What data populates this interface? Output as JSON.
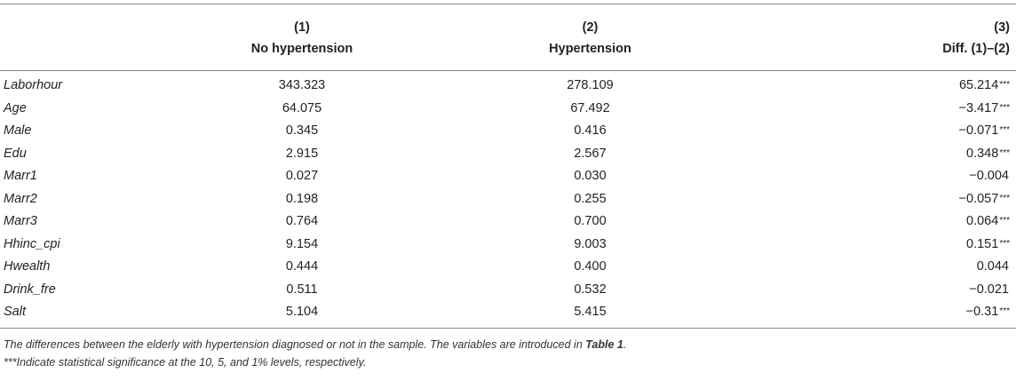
{
  "table": {
    "headers": {
      "col1_num": "(1)",
      "col1_name": "No hypertension",
      "col2_num": "(2)",
      "col2_name": "Hypertension",
      "col3_num": "(3)",
      "col3_name": "Diff. (1)–(2)"
    },
    "rows": [
      {
        "var": "Laborhour",
        "v1": "343.323",
        "v2": "278.109",
        "diff": "65.214",
        "stars": "***"
      },
      {
        "var": "Age",
        "v1": "64.075",
        "v2": "67.492",
        "diff": "−3.417",
        "stars": "***"
      },
      {
        "var": "Male",
        "v1": "0.345",
        "v2": "0.416",
        "diff": "−0.071",
        "stars": "***"
      },
      {
        "var": "Edu",
        "v1": "2.915",
        "v2": "2.567",
        "diff": "0.348",
        "stars": "***"
      },
      {
        "var": "Marr1",
        "v1": "0.027",
        "v2": "0.030",
        "diff": "−0.004",
        "stars": ""
      },
      {
        "var": "Marr2",
        "v1": "0.198",
        "v2": "0.255",
        "diff": "−0.057",
        "stars": "***"
      },
      {
        "var": "Marr3",
        "v1": "0.764",
        "v2": "0.700",
        "diff": "0.064",
        "stars": "***"
      },
      {
        "var": "Hhinc_cpi",
        "v1": "9.154",
        "v2": "9.003",
        "diff": "0.151",
        "stars": "***"
      },
      {
        "var": "Hwealth",
        "v1": "0.444",
        "v2": "0.400",
        "diff": "0.044",
        "stars": ""
      },
      {
        "var": "Drink_fre",
        "v1": "0.511",
        "v2": "0.532",
        "diff": "−0.021",
        "stars": ""
      },
      {
        "var": "Salt",
        "v1": "5.104",
        "v2": "5.415",
        "diff": "−0.31",
        "stars": "***"
      }
    ]
  },
  "notes": {
    "line1_text": "The differences between the elderly with hypertension diagnosed or not in the sample. The variables are introduced in ",
    "line1_ref": "Table 1",
    "line1_end": ".",
    "line2_stars": "***",
    "line2_text": "Indicate statistical significance at the 10, 5, and 1% levels, respectively."
  }
}
